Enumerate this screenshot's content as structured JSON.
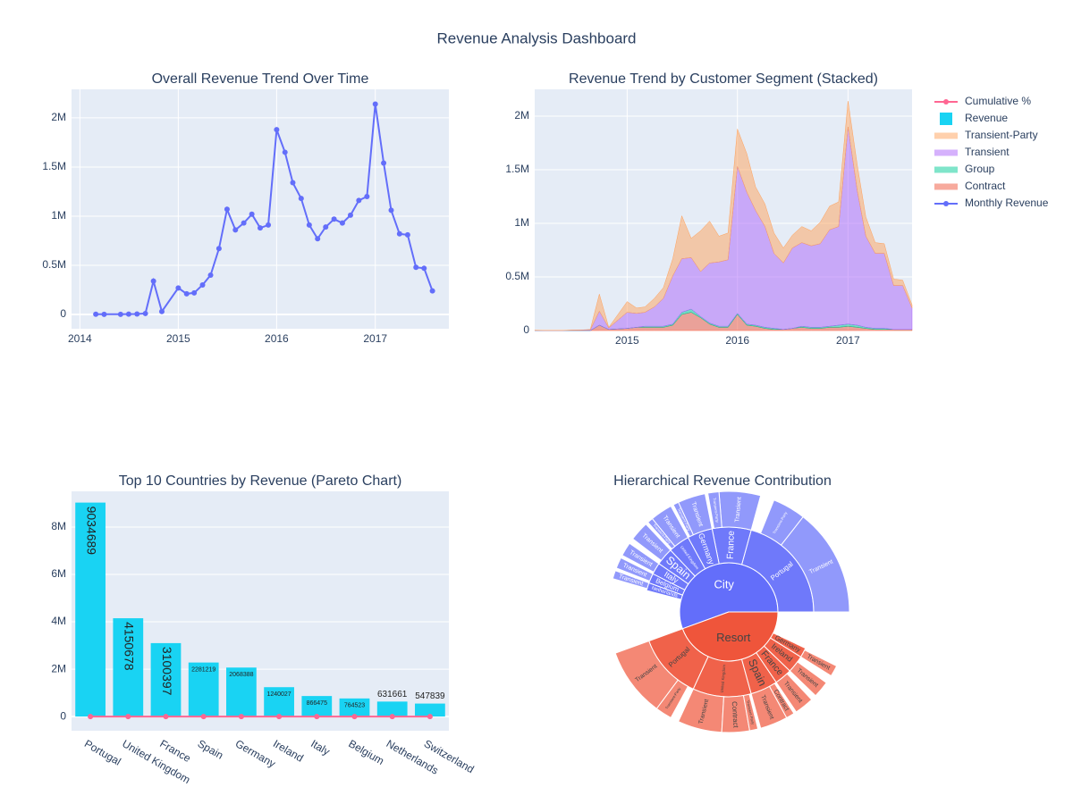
{
  "title": "Revenue Analysis Dashboard",
  "legend": "right",
  "chart_data": [
    {
      "type": "line",
      "title": "Overall Revenue Trend Over Time",
      "x": [
        "2014-03",
        "2014-04",
        "2014-06",
        "2014-07",
        "2014-08",
        "2014-09",
        "2014-10",
        "2014-11",
        "2015-01",
        "2015-02",
        "2015-03",
        "2015-04",
        "2015-05",
        "2015-06",
        "2015-07",
        "2015-08",
        "2015-09",
        "2015-10",
        "2015-11",
        "2015-12",
        "2016-01",
        "2016-02",
        "2016-03",
        "2016-04",
        "2016-05",
        "2016-06",
        "2016-07",
        "2016-08",
        "2016-09",
        "2016-10",
        "2016-11",
        "2016-12",
        "2017-01",
        "2017-02",
        "2017-03",
        "2017-04",
        "2017-05",
        "2017-06",
        "2017-07",
        "2017-08"
      ],
      "series": [
        {
          "name": "Monthly Revenue",
          "color": "#636efa",
          "values": [
            3000,
            2000,
            2000,
            4000,
            5000,
            10000,
            340000,
            30000,
            270000,
            210000,
            220000,
            300000,
            400000,
            670000,
            1070000,
            860000,
            930000,
            1020000,
            880000,
            910000,
            1880000,
            1650000,
            1340000,
            1180000,
            910000,
            770000,
            890000,
            970000,
            930000,
            1010000,
            1160000,
            1200000,
            2140000,
            1540000,
            1060000,
            820000,
            810000,
            480000,
            470000,
            240000
          ]
        }
      ],
      "xlim": [
        "2013-12",
        "2017-10"
      ],
      "xticks": [
        "2014",
        "2015",
        "2016",
        "2017"
      ],
      "ylim": [
        -145000,
        2290000
      ],
      "yticks": [
        0,
        {
          "value": 500000,
          "label": "0.5M"
        },
        {
          "value": 1000000,
          "label": "1M"
        },
        {
          "value": 1500000,
          "label": "1.5M"
        },
        {
          "value": 2000000,
          "label": "2M"
        }
      ],
      "grid": true
    },
    {
      "type": "area",
      "stacked": true,
      "title": "Revenue Trend by Customer Segment (Stacked)",
      "x": [
        "2014-03",
        "2014-04",
        "2014-06",
        "2014-07",
        "2014-08",
        "2014-09",
        "2014-10",
        "2014-11",
        "2015-01",
        "2015-02",
        "2015-03",
        "2015-04",
        "2015-05",
        "2015-06",
        "2015-07",
        "2015-08",
        "2015-09",
        "2015-10",
        "2015-11",
        "2015-12",
        "2016-01",
        "2016-02",
        "2016-03",
        "2016-04",
        "2016-05",
        "2016-06",
        "2016-07",
        "2016-08",
        "2016-09",
        "2016-10",
        "2016-11",
        "2016-12",
        "2017-01",
        "2017-02",
        "2017-03",
        "2017-04",
        "2017-05",
        "2017-06",
        "2017-07",
        "2017-08"
      ],
      "series": [
        {
          "name": "Contract",
          "color": "#ef553b",
          "values": [
            0,
            0,
            0,
            0,
            0,
            0,
            50000,
            10000,
            20000,
            30000,
            30000,
            30000,
            30000,
            50000,
            150000,
            170000,
            120000,
            60000,
            30000,
            30000,
            150000,
            50000,
            40000,
            20000,
            10000,
            10000,
            20000,
            30000,
            20000,
            20000,
            30000,
            30000,
            40000,
            30000,
            20000,
            10000,
            10000,
            10000,
            10000,
            10000
          ]
        },
        {
          "name": "Group",
          "color": "#00cc96",
          "values": [
            0,
            0,
            0,
            0,
            0,
            0,
            0,
            0,
            0,
            0,
            10000,
            10000,
            10000,
            10000,
            20000,
            30000,
            10000,
            10000,
            10000,
            10000,
            10000,
            10000,
            10000,
            10000,
            10000,
            0,
            0,
            10000,
            10000,
            10000,
            10000,
            20000,
            20000,
            20000,
            10000,
            10000,
            10000,
            0,
            0,
            0
          ]
        },
        {
          "name": "Transient",
          "color": "#ab63fa",
          "values": [
            2000,
            1000,
            1000,
            3000,
            4000,
            7000,
            130000,
            15000,
            150000,
            130000,
            130000,
            180000,
            260000,
            450000,
            500000,
            480000,
            420000,
            560000,
            600000,
            620000,
            1370000,
            1230000,
            1070000,
            940000,
            700000,
            620000,
            750000,
            780000,
            760000,
            780000,
            900000,
            920000,
            1840000,
            1250000,
            850000,
            700000,
            700000,
            410000,
            410000,
            200000
          ]
        },
        {
          "name": "Transient-Party",
          "color": "#ffa15a",
          "values": [
            1000,
            1000,
            1000,
            1000,
            1000,
            3000,
            160000,
            5000,
            100000,
            50000,
            50000,
            80000,
            100000,
            160000,
            400000,
            180000,
            380000,
            390000,
            240000,
            250000,
            350000,
            360000,
            220000,
            210000,
            190000,
            140000,
            120000,
            150000,
            140000,
            200000,
            220000,
            230000,
            240000,
            240000,
            180000,
            100000,
            90000,
            60000,
            50000,
            30000
          ]
        }
      ],
      "xlim": [
        "2014-03",
        "2017-08"
      ],
      "xticks": [
        "2015",
        "2016",
        "2017"
      ],
      "ylim": [
        0,
        2250000
      ],
      "yticks": [
        0,
        {
          "value": 500000,
          "label": "0.5M"
        },
        {
          "value": 1000000,
          "label": "1M"
        },
        {
          "value": 1500000,
          "label": "1.5M"
        },
        {
          "value": 2000000,
          "label": "2M"
        }
      ],
      "grid": true
    },
    {
      "type": "bar",
      "title": "Top 10 Countries by Revenue (Pareto Chart)",
      "categories": [
        "Portugal",
        "United Kingdom",
        "France",
        "Spain",
        "Germany",
        "Ireland",
        "Italy",
        "Belgium",
        "Netherlands",
        "Switzerland"
      ],
      "series": [
        {
          "name": "Revenue",
          "type": "bar",
          "color": "#19d3f3",
          "values": [
            9034689,
            4150678,
            3100397,
            2281219,
            2068388,
            1240027,
            866475,
            764523,
            631661,
            547839
          ]
        },
        {
          "name": "Cumulative %",
          "type": "line",
          "color": "#ff6692",
          "values": [
            36.6,
            53.4,
            66,
            75.2,
            83.6,
            88.6,
            92.1,
            95.2,
            97.8,
            100
          ]
        }
      ],
      "ylim": [
        -600000,
        9510000
      ],
      "yticks": [
        0,
        {
          "value": 2000000,
          "label": "2M"
        },
        {
          "value": 4000000,
          "label": "4M"
        },
        {
          "value": 6000000,
          "label": "6M"
        },
        {
          "value": 8000000,
          "label": "8M"
        }
      ],
      "grid": true
    },
    {
      "type": "sunburst",
      "title": "Hierarchical Revenue Contribution",
      "nodes": [
        {
          "label": "City",
          "color": "#636efa",
          "value": 15000000,
          "children": [
            {
              "label": "Portugal",
              "value": 5600000,
              "children": [
                {
                  "label": "Transient",
                  "value": 3900000
                },
                {
                  "label": "Transient-Party",
                  "value": 1200000
                }
              ]
            },
            {
              "label": "France",
              "value": 2000000,
              "children": [
                {
                  "label": "Transient",
                  "value": 1500000
                },
                {
                  "label": "Transient-Party",
                  "value": 400000
                }
              ]
            },
            {
              "label": "Germany",
              "value": 1300000,
              "children": [
                {
                  "label": "Transient",
                  "value": 1000000
                },
                {
                  "label": "Transient-Party",
                  "value": 200000
                }
              ]
            },
            {
              "label": "United Kingdom",
              "value": 1100000,
              "children": [
                {
                  "label": "Transient",
                  "value": 800000
                },
                {
                  "label": "Transient-Party",
                  "value": 200000
                }
              ]
            },
            {
              "label": "Spain",
              "value": 900000,
              "children": [
                {
                  "label": "Transient",
                  "value": 700000
                }
              ]
            },
            {
              "label": "Italy",
              "value": 600000,
              "children": [
                {
                  "label": "Transient",
                  "value": 500000
                }
              ]
            },
            {
              "label": "Belgium",
              "value": 500000,
              "children": [
                {
                  "label": "Transient",
                  "value": 400000
                }
              ]
            },
            {
              "label": "Netherlands",
              "value": 400000,
              "children": [
                {
                  "label": "Transient",
                  "value": 300000
                }
              ]
            }
          ]
        },
        {
          "label": "Resort",
          "color": "#ef553b",
          "value": 12000000,
          "children": [
            {
              "label": "Portugal",
              "value": 3400000,
              "children": [
                {
                  "label": "Transient",
                  "value": 2500000
                },
                {
                  "label": "Transient-Party",
                  "value": 600000
                }
              ]
            },
            {
              "label": "United Kingdom",
              "value": 3000000,
              "children": [
                {
                  "label": "Transient",
                  "value": 1600000
                },
                {
                  "label": "Contract",
                  "value": 1000000
                },
                {
                  "label": "Transient-Party",
                  "value": 300000
                }
              ]
            },
            {
              "label": "Spain",
              "value": 1400000,
              "children": [
                {
                  "label": "Transient",
                  "value": 1000000
                },
                {
                  "label": "Contract",
                  "value": 300000
                }
              ]
            },
            {
              "label": "France",
              "value": 900000,
              "children": [
                {
                  "label": "Transient",
                  "value": 700000
                }
              ]
            },
            {
              "label": "Ireland",
              "value": 900000,
              "children": [
                {
                  "label": "Transient",
                  "value": 600000
                }
              ]
            },
            {
              "label": "Germany",
              "value": 500000,
              "children": [
                {
                  "label": "Transient",
                  "value": 400000
                }
              ]
            }
          ]
        }
      ]
    }
  ]
}
